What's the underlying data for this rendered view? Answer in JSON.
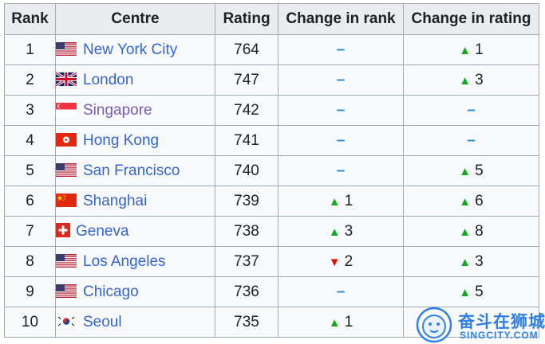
{
  "headers": {
    "rank": "Rank",
    "centre": "Centre",
    "rating": "Rating",
    "change_rank": "Change in rank",
    "change_rating": "Change in rating"
  },
  "rows": [
    {
      "rank": "1",
      "centre": "New York City",
      "flag": "usa-flag-icon",
      "rating": "764",
      "change_rank": "–",
      "change_rating": "1"
    },
    {
      "rank": "2",
      "centre": "London",
      "flag": "uk-flag-icon",
      "rating": "747",
      "change_rank": "–",
      "change_rating": "3"
    },
    {
      "rank": "3",
      "centre": "Singapore",
      "flag": "singapore-flag-icon",
      "rating": "742",
      "change_rank": "–",
      "change_rating": "–"
    },
    {
      "rank": "4",
      "centre": "Hong Kong",
      "flag": "hong-kong-flag-icon",
      "rating": "741",
      "change_rank": "–",
      "change_rating": "–"
    },
    {
      "rank": "5",
      "centre": "San Francisco",
      "flag": "usa-flag-icon",
      "rating": "740",
      "change_rank": "–",
      "change_rating": "5"
    },
    {
      "rank": "6",
      "centre": "Shanghai",
      "flag": "china-flag-icon",
      "rating": "739",
      "change_rank": "1",
      "change_rating": "6"
    },
    {
      "rank": "7",
      "centre": "Geneva",
      "flag": "swiss-flag-icon",
      "rating": "738",
      "change_rank": "3",
      "change_rating": "8"
    },
    {
      "rank": "8",
      "centre": "Los Angeles",
      "flag": "usa-flag-icon",
      "rating": "737",
      "change_rank": "2",
      "change_rating": "3"
    },
    {
      "rank": "9",
      "centre": "Chicago",
      "flag": "usa-flag-icon",
      "rating": "736",
      "change_rank": "–",
      "change_rating": "5"
    },
    {
      "rank": "10",
      "centre": "Seoul",
      "flag": "korea-flag-icon",
      "rating": "735",
      "change_rank": "1",
      "change_rating": ""
    }
  ],
  "watermark": {
    "main": "奋斗在狮城",
    "sub": "SINGCITY.COM"
  },
  "colors": {
    "link": "#3366cc",
    "visited_link": "#795cb2",
    "up": "#11aa22",
    "down": "#dd1100",
    "dash": "#2a8bd4"
  }
}
